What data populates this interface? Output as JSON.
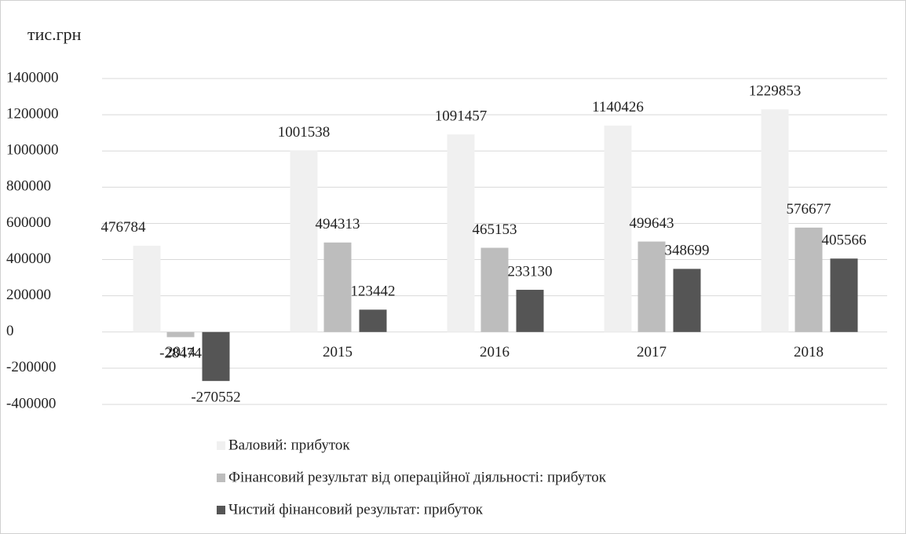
{
  "chart_data": {
    "type": "bar",
    "y_label": "тис.грн",
    "categories": [
      "2014",
      "2015",
      "2016",
      "2017",
      "2018"
    ],
    "series": [
      {
        "name": "Валовий: прибуток",
        "color": "#f0f0f0",
        "values": [
          476784,
          1001538,
          1091457,
          1140426,
          1229853
        ]
      },
      {
        "name": "Фінансовий результат від операційної діяльності: прибуток",
        "color": "#bdbdbd",
        "values": [
          -28474,
          494313,
          465153,
          499643,
          576677
        ]
      },
      {
        "name": "Чистий фінансовий результат: прибуток",
        "color": "#555555",
        "values": [
          -270552,
          123442,
          233130,
          348699,
          405566
        ]
      }
    ],
    "ylim": [
      -400000,
      1400000
    ],
    "yticks": [
      -400000,
      -200000,
      0,
      200000,
      400000,
      600000,
      800000,
      1000000,
      1200000,
      1400000
    ],
    "grid": true,
    "legend": "bottom"
  }
}
